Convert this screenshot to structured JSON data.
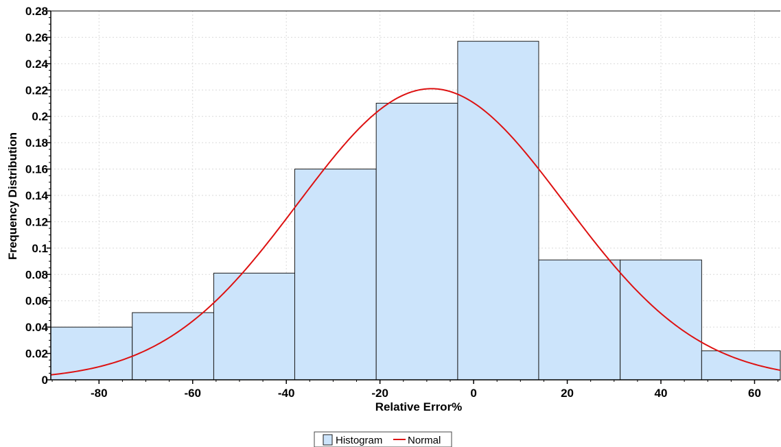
{
  "chart_data": {
    "type": "bar",
    "title": "",
    "xlabel": "Relative Error%",
    "ylabel": "Frequency Distribution",
    "xlim": [
      -90.3,
      65.5
    ],
    "ylim": [
      0,
      0.28
    ],
    "xticks": [
      -80,
      -60,
      -40,
      -20,
      0,
      20,
      40,
      60
    ],
    "yticks": [
      0,
      0.02,
      0.04,
      0.06,
      0.08,
      0.1,
      0.12,
      0.14,
      0.16,
      0.18,
      0.2,
      0.22,
      0.24,
      0.26,
      0.28
    ],
    "grid": true,
    "legend_position": "bottom-center",
    "colors": {
      "bar_fill": "#cce4fb",
      "bar_stroke": "#1a1a1a",
      "curve": "#dd1111",
      "grid": "#d9d9d9"
    },
    "series": [
      {
        "name": "Histogram",
        "bins": [
          {
            "x0": -90.3,
            "x1": -72.9,
            "value": 0.04
          },
          {
            "x0": -72.9,
            "x1": -55.5,
            "value": 0.051
          },
          {
            "x0": -55.5,
            "x1": -38.2,
            "value": 0.081
          },
          {
            "x0": -38.2,
            "x1": -20.8,
            "value": 0.16
          },
          {
            "x0": -20.8,
            "x1": -3.4,
            "value": 0.21
          },
          {
            "x0": -3.4,
            "x1": 13.9,
            "value": 0.257
          },
          {
            "x0": 13.9,
            "x1": 31.3,
            "value": 0.091
          },
          {
            "x0": 31.3,
            "x1": 48.7,
            "value": 0.091
          },
          {
            "x0": 48.7,
            "x1": 65.5,
            "value": 0.022
          }
        ]
      },
      {
        "name": "Normal",
        "mean": -9,
        "sd": 28.5,
        "peak": 0.221
      }
    ]
  }
}
